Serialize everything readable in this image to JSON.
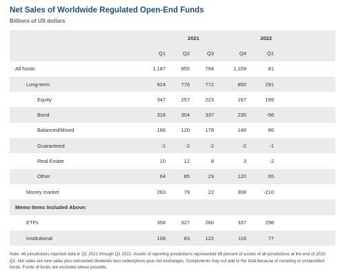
{
  "header": {
    "title": "Net Sales of Worldwide Regulated Open-End Funds",
    "subtitle": "Billions of US dollars"
  },
  "table": {
    "years": [
      "2021",
      "2022"
    ],
    "columns": [
      "Q1",
      "Q2",
      "Q3",
      "Q4",
      "Q1"
    ],
    "rows": [
      {
        "label": "All funds",
        "values": [
          "1,187",
          "855",
          "794",
          "1,109",
          "81"
        ]
      },
      {
        "label": "Long-term",
        "values": [
          "924",
          "776",
          "772",
          "800",
          "291"
        ]
      },
      {
        "label": "Equity",
        "values": [
          "347",
          "257",
          "223",
          "297",
          "199"
        ]
      },
      {
        "label": "Bond",
        "values": [
          "318",
          "304",
          "337",
          "235",
          "-56"
        ]
      },
      {
        "label": "Balanced/Mixed",
        "values": [
          "186",
          "120",
          "178",
          "146",
          "86"
        ]
      },
      {
        "label": "Guaranteed",
        "values": [
          "-1",
          "-2",
          "-2",
          "-2",
          "-1"
        ]
      },
      {
        "label": "Real Estate",
        "values": [
          "10",
          "12",
          "8",
          "3",
          "-2"
        ]
      },
      {
        "label": "Other",
        "values": [
          "64",
          "85",
          "29",
          "120",
          "65"
        ]
      },
      {
        "label": "Money market",
        "values": [
          "263",
          "79",
          "22",
          "308",
          "-210"
        ]
      }
    ],
    "memo": {
      "title": "Memo Items Included Above:",
      "rows": [
        {
          "label": "ETFs",
          "values": [
            "358",
            "327",
            "260",
            "337",
            "298"
          ]
        },
        {
          "label": "Institutional",
          "values": [
            "108",
            "83",
            "122",
            "116",
            "77"
          ]
        }
      ]
    }
  },
  "note": "Note: 46 jurisdictions reported data in Q1 2021 through Q1 2022. Assets of reporting jurisdictions represented 98 percent of assets of all jurisdictions at the end of 2022: Q1. Net sales are new sales plus reinvested dividends less redemptions plus net exchanges. Components may not add to the total because of rounding or unclassified funds. Funds of funds are excluded where possible."
}
